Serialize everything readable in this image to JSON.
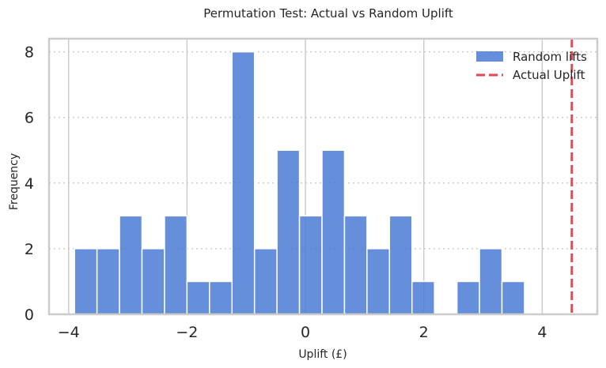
{
  "colors": {
    "bar": "#4a7bd3",
    "actual_line": "#de4a4f",
    "grid": "#cccccc",
    "frame": "#cccccc"
  },
  "chart_data": {
    "type": "bar",
    "title": "Permutation Test: Actual vs Random Uplift",
    "xlabel": "Uplift (£)",
    "ylabel": "Frequency",
    "xlim": [
      -4.33,
      4.93
    ],
    "ylim": [
      0,
      8.4
    ],
    "xticks": [
      -4,
      -2,
      0,
      2,
      4
    ],
    "xtick_labels": [
      "−4",
      "−2",
      "0",
      "2",
      "4"
    ],
    "yticks": [
      0,
      2,
      4,
      6,
      8
    ],
    "ytick_labels": [
      "0",
      "2",
      "4",
      "6",
      "8"
    ],
    "bin_edges": [
      -3.9,
      -3.52,
      -3.14,
      -2.76,
      -2.38,
      -2.0,
      -1.62,
      -1.24,
      -0.86,
      -0.48,
      -0.1,
      0.28,
      0.66,
      1.04,
      1.42,
      1.8,
      2.18,
      2.56,
      2.94,
      3.32,
      3.7
    ],
    "counts": [
      2,
      2,
      3,
      2,
      3,
      1,
      1,
      8,
      2,
      5,
      3,
      5,
      3,
      2,
      3,
      1,
      0,
      1,
      2,
      1
    ],
    "actual_uplift": 4.5,
    "grid": {
      "x": "solid",
      "y": "dotted"
    },
    "legend": {
      "placement": "top-right",
      "entries": [
        {
          "label": "Random lifts",
          "kind": "patch"
        },
        {
          "label": "Actual Uplift",
          "kind": "dashed-line"
        }
      ]
    }
  }
}
